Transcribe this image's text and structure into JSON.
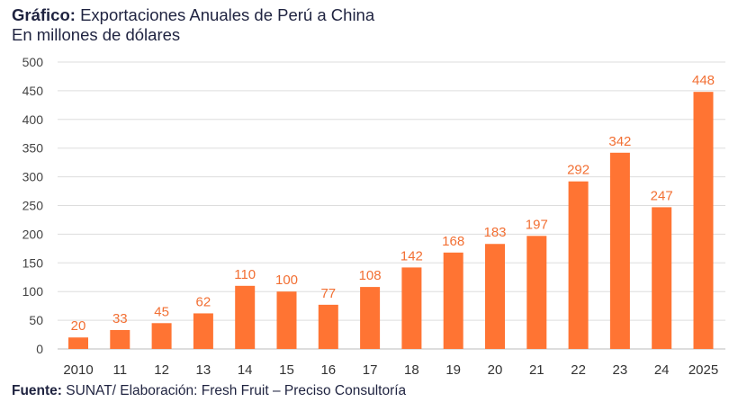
{
  "header": {
    "title_prefix": "Gráfico:",
    "title": "Exportaciones Anuales de Perú a China",
    "subtitle": "En millones de dólares"
  },
  "footer": {
    "source_prefix": "Fuente:",
    "source": "SUNAT/ Elaboración: Fresh Fruit – Preciso Consultoría"
  },
  "chart_data": {
    "type": "bar",
    "title": "Exportaciones Anuales de Perú a China",
    "subtitle": "En millones de dólares",
    "categories": [
      "2010",
      "11",
      "12",
      "13",
      "14",
      "15",
      "16",
      "17",
      "18",
      "19",
      "20",
      "21",
      "22",
      "23",
      "24",
      "2025"
    ],
    "values": [
      20,
      33,
      45,
      62,
      110,
      100,
      77,
      108,
      142,
      168,
      183,
      197,
      292,
      342,
      247,
      448
    ],
    "ylim": [
      0,
      500
    ],
    "yticks": [
      0,
      50,
      100,
      150,
      200,
      250,
      300,
      350,
      400,
      450,
      500
    ],
    "grid": true,
    "data_labels": true,
    "bar_color": "#ff7433",
    "label_color": "#f26f33"
  }
}
